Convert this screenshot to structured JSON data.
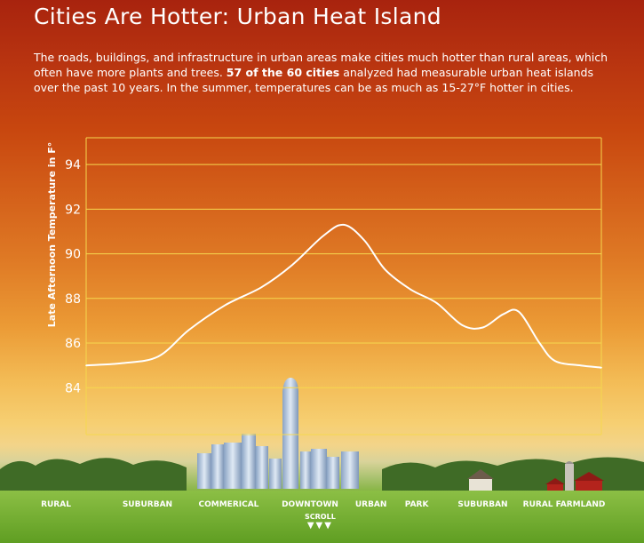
{
  "header": {
    "title": "Cities Are Hotter: Urban Heat Island",
    "intro_part1": "The roads, buildings, and infrastructure in urban areas make cities much hotter than rural areas, which often have more plants and trees. ",
    "intro_bold": "57 of the 60 cities",
    "intro_part2": " analyzed had measurable urban heat islands over the past 10 years. In the summer, temperatures can be as much as 15-27°F hotter in cities."
  },
  "scroll": {
    "label": "SCROLL",
    "arrows": "▼▼▼"
  },
  "colors": {
    "line": "#ffffff",
    "grid": "#f5d84f",
    "text": "#ffffff"
  },
  "chart_data": {
    "type": "line",
    "ylabel": "Late Afternoon Temperature in F°",
    "yticks": [
      84,
      86,
      88,
      90,
      92,
      94
    ],
    "ylim": [
      81.9,
      95.2
    ],
    "grid": true,
    "categories": [
      "RURAL",
      "SUBURBAN",
      "COMMERICAL",
      "DOWNTOWN",
      "URBAN",
      "PARK",
      "SUBURBAN",
      "RURAL FARMLAND"
    ],
    "category_x": [
      0,
      0.18,
      0.34,
      0.5,
      0.62,
      0.71,
      0.84,
      1
    ],
    "series": [
      {
        "x": [
          0,
          0.07,
          0.14,
          0.2,
          0.27,
          0.34,
          0.4,
          0.46,
          0.5,
          0.54,
          0.58,
          0.63,
          0.68,
          0.73,
          0.77,
          0.81,
          0.84,
          0.88,
          0.91,
          0.96,
          1
        ],
        "values": [
          85.0,
          85.1,
          85.4,
          86.6,
          87.7,
          88.5,
          89.5,
          90.8,
          91.3,
          90.6,
          89.3,
          88.4,
          87.8,
          86.8,
          86.7,
          87.3,
          87.4,
          86.0,
          85.2,
          85.0,
          84.9
        ]
      }
    ]
  }
}
